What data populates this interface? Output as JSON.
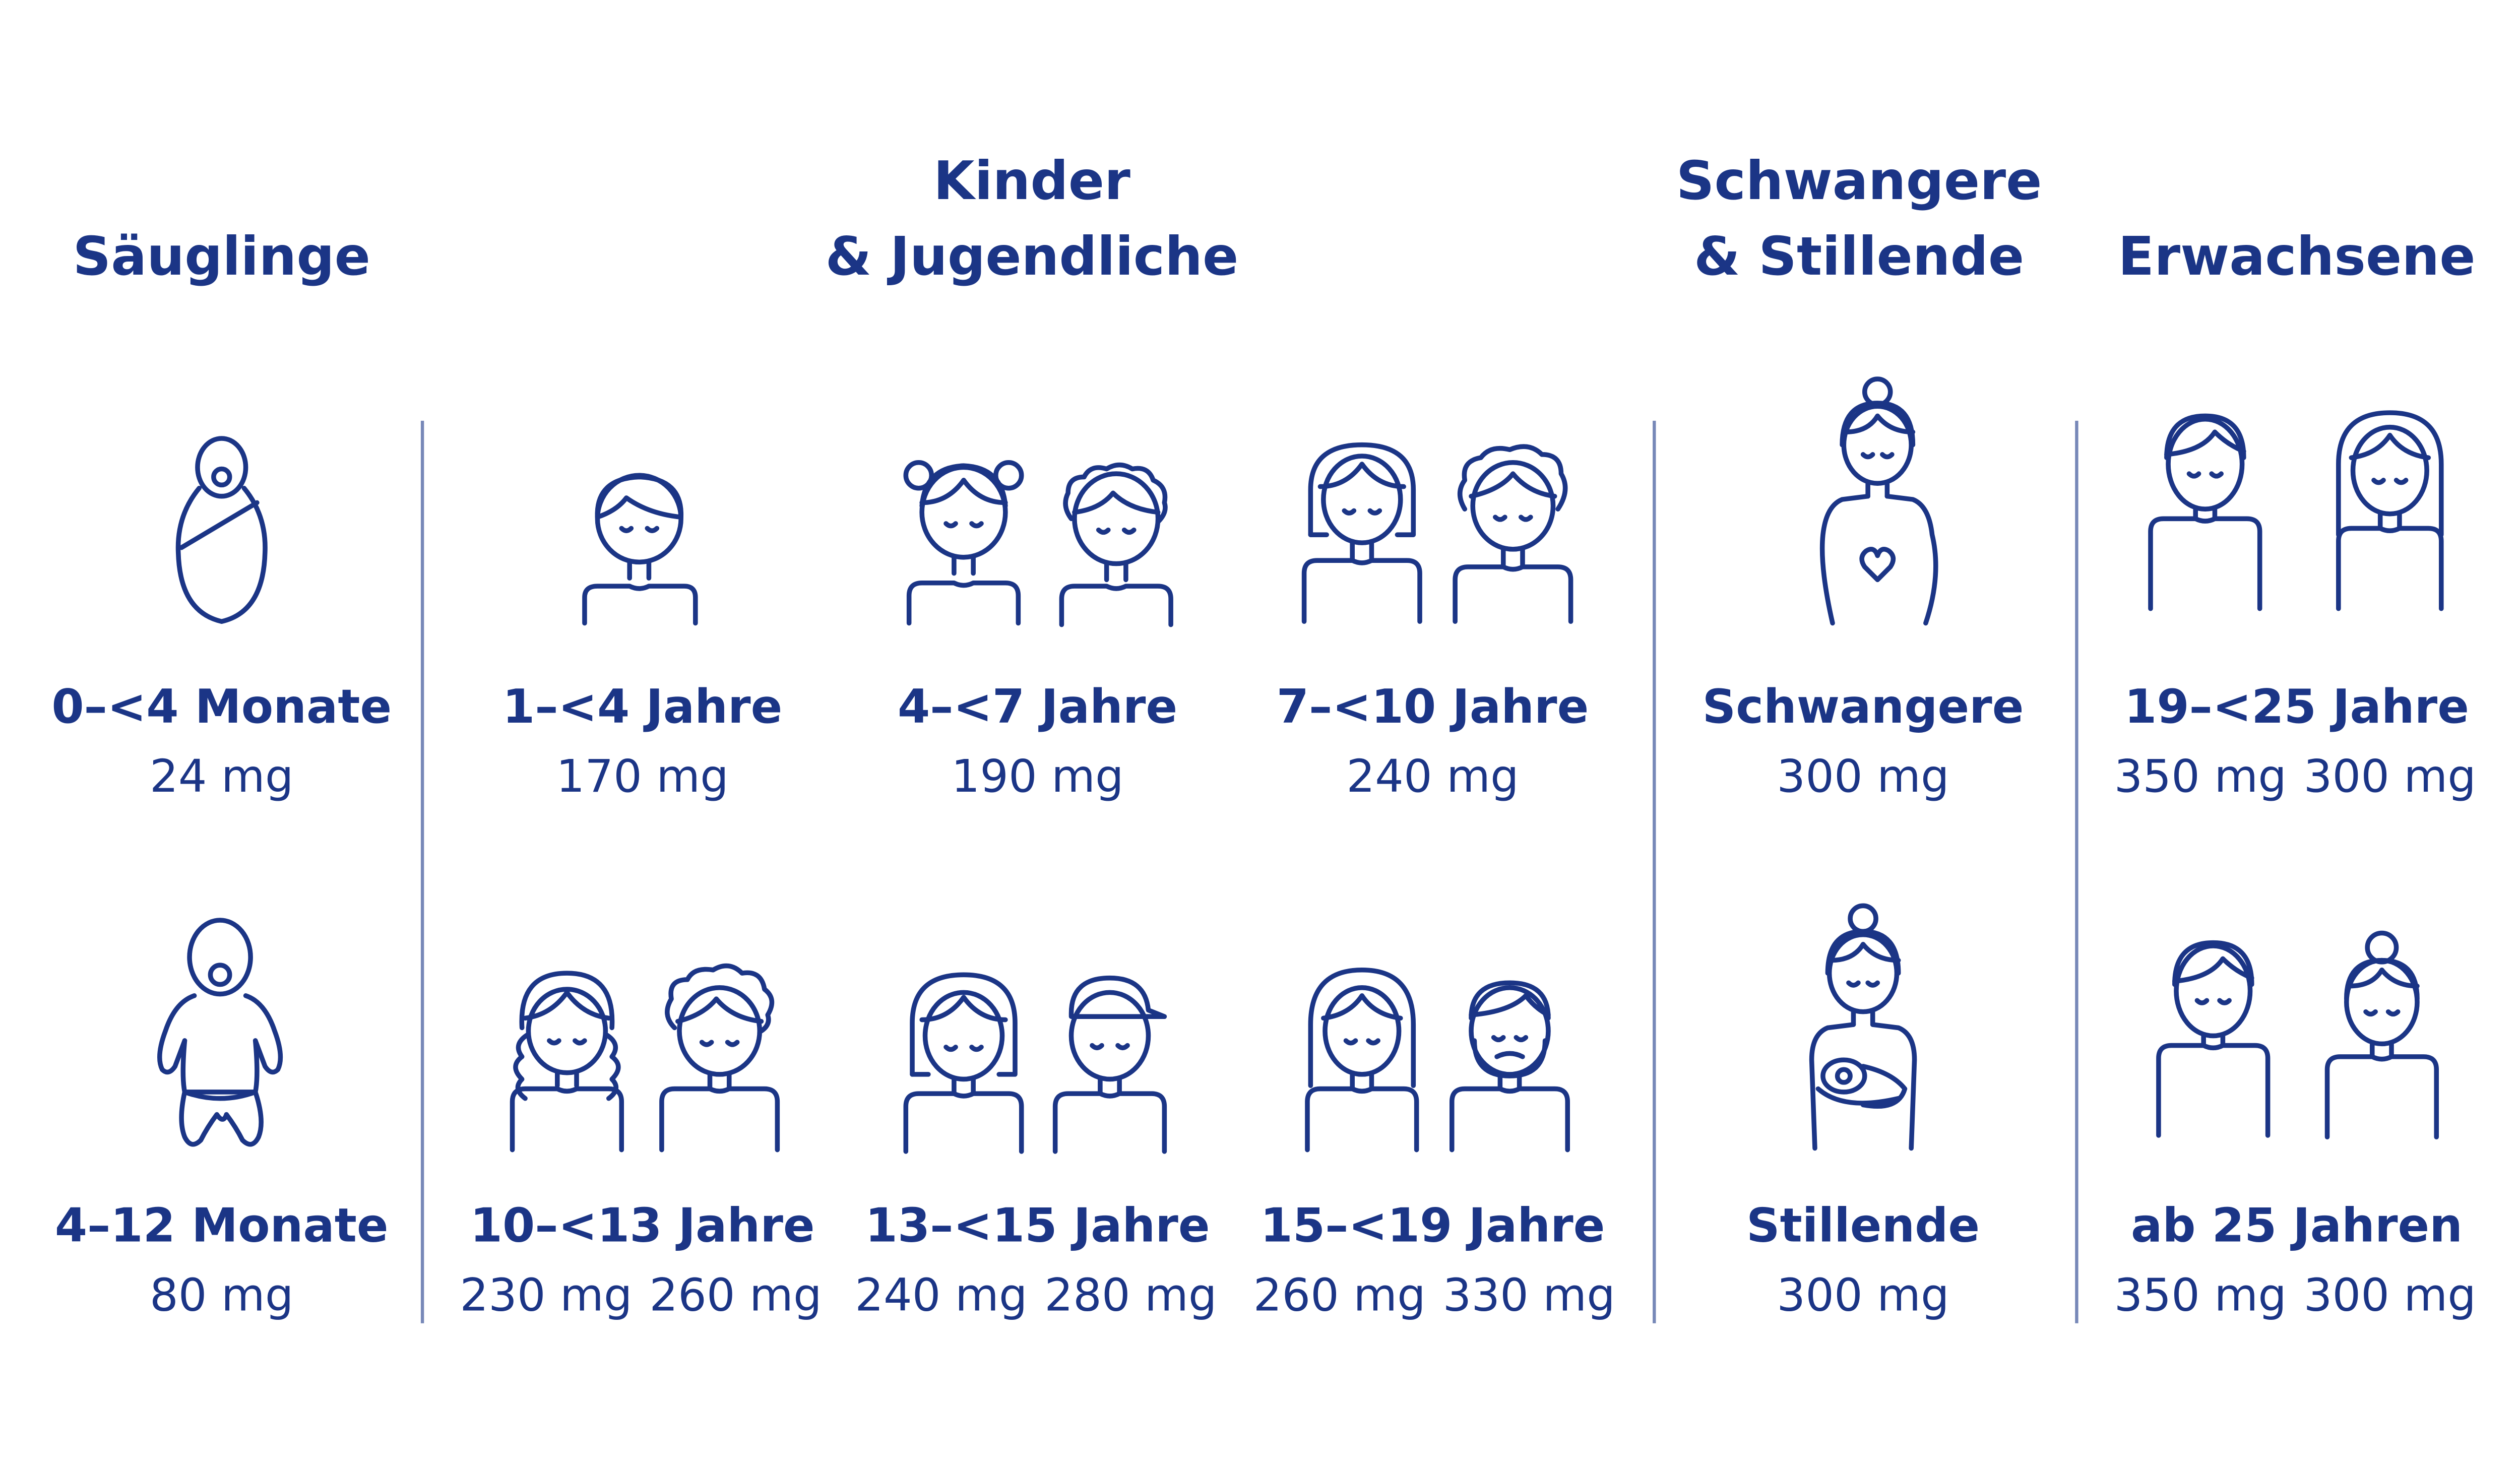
{
  "headers": {
    "infants": "Säuglinge",
    "children_line1": "Kinder",
    "children_line2": "& Jugendliche",
    "pregnant_line1": "Schwangere",
    "pregnant_line2": "& Stillende",
    "adults": "Erwachsene"
  },
  "groups": {
    "infant_0_4": {
      "label": "0–<4 Monate",
      "value": "24 mg"
    },
    "infant_4_12": {
      "label": "4–12 Monate",
      "value": "80 mg"
    },
    "child_1_4": {
      "label": "1–<4 Jahre",
      "value": "170 mg"
    },
    "child_4_7": {
      "label": "4–<7 Jahre",
      "value": "190 mg"
    },
    "child_7_10": {
      "label": "7–<10 Jahre",
      "value": "240 mg"
    },
    "youth_10_13": {
      "label": "10–<13 Jahre",
      "female": "230 mg",
      "male": "260 mg"
    },
    "youth_13_15": {
      "label": "13–<15 Jahre",
      "female": "240 mg",
      "male": "280 mg"
    },
    "youth_15_19": {
      "label": "15–<19 Jahre",
      "female": "260 mg",
      "male": "330 mg"
    },
    "pregnant": {
      "label": "Schwangere",
      "value": "300 mg"
    },
    "breastfeeding": {
      "label": "Stillende",
      "value": "300 mg"
    },
    "adult_19_25": {
      "label": "19–<25 Jahre",
      "male": "350 mg",
      "female": "300 mg"
    },
    "adult_25_plus": {
      "label": "ab 25 Jahren",
      "male": "350 mg",
      "female": "300 mg"
    }
  },
  "colors": {
    "primary": "#1b3586",
    "divider": "#7788b8",
    "background": "#ffffff"
  }
}
